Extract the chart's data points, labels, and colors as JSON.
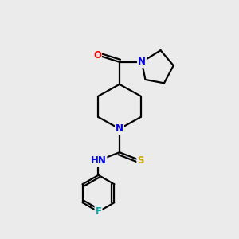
{
  "bg_color": "#ebebeb",
  "atom_colors": {
    "O": "#ff0000",
    "N": "#0000ff",
    "S": "#ccaa00",
    "F": "#00aaaa",
    "H": "#000000",
    "C": "#000000"
  },
  "bond_color": "#000000",
  "bond_width": 1.6,
  "font_size_atom": 8.5,
  "figsize": [
    3.0,
    3.0
  ],
  "dpi": 100
}
